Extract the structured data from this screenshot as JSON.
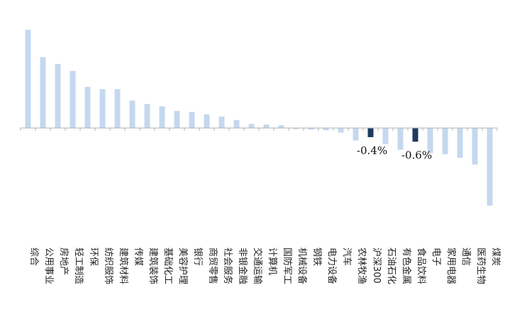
{
  "chart_data": {
    "type": "bar",
    "title": "",
    "xlabel": "",
    "ylabel": "",
    "colors": {
      "default": "#c5d8ef",
      "highlight": "#1f3a5f",
      "axis": "#b0b0b0",
      "text": "#222222"
    },
    "categories": [
      "综合",
      "公用事业",
      "房地产",
      "轻工制造",
      "环保",
      "纺织服饰",
      "建筑材料",
      "传媒",
      "建筑装饰",
      "基础化工",
      "美容护理",
      "银行",
      "商贸零售",
      "社会服务",
      "非银金融",
      "交通运输",
      "计算机",
      "国防军工",
      "机械设备",
      "钢铁",
      "电力设备",
      "汽车",
      "农林牧渔",
      "沪深300",
      "石油石化",
      "有色金属",
      "食品饮料",
      "电子",
      "家用电器",
      "通信",
      "医药生物",
      "煤炭"
    ],
    "values": [
      4.3,
      3.1,
      2.8,
      2.5,
      1.8,
      1.7,
      1.7,
      1.2,
      1.05,
      0.95,
      0.75,
      0.7,
      0.6,
      0.5,
      0.35,
      0.18,
      0.15,
      0.12,
      -0.05,
      -0.07,
      -0.1,
      -0.2,
      -0.55,
      -0.4,
      -0.7,
      -0.95,
      -0.6,
      -1.1,
      -1.15,
      -1.3,
      -1.6,
      -3.4
    ],
    "highlight": [
      "沪深300",
      "食品饮料"
    ],
    "data_labels": [
      {
        "category": "沪深300",
        "text": "-0.4%"
      },
      {
        "category": "食品饮料",
        "text": "-0.6%"
      }
    ],
    "ylim": [
      -4.0,
      4.5
    ],
    "grid": false
  }
}
